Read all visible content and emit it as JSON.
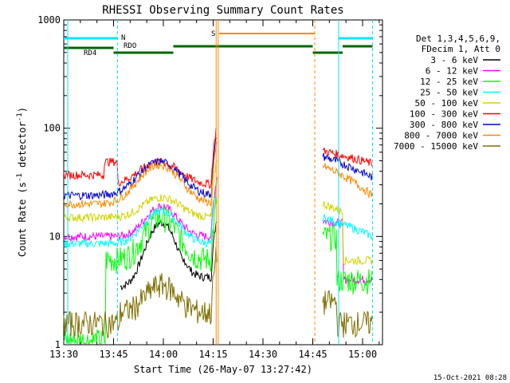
{
  "chart_data": {
    "type": "line",
    "title": "RHESSI Observing Summary Count Rates",
    "xlabel": "Start Time (26-May-07 13:27:42)",
    "ylabel_main": "Count Rate (s",
    "ylabel_sup1": "-1",
    "ylabel_mid": " detector",
    "ylabel_sup2": "-1",
    "ylabel_end": ")",
    "y_scale": "log",
    "ylim": [
      1,
      1000
    ],
    "xlim_minutes": [
      13.5,
      15.1
    ],
    "x_ticks": [
      {
        "t": 13.5,
        "label": "13:30"
      },
      {
        "t": 13.75,
        "label": "13:45"
      },
      {
        "t": 14.0,
        "label": "14:00"
      },
      {
        "t": 14.25,
        "label": "14:15"
      },
      {
        "t": 14.5,
        "label": "14:30"
      },
      {
        "t": 14.75,
        "label": "14:45"
      },
      {
        "t": 15.0,
        "label": "15:00"
      }
    ],
    "y_ticks": [
      {
        "v": 1,
        "label": "1"
      },
      {
        "v": 10,
        "label": "10"
      },
      {
        "v": 100,
        "label": "100"
      },
      {
        "v": 1000,
        "label": "1000"
      }
    ],
    "legend_header": [
      "Det 1,3,4,5,6,9,",
      "FDecim 1, Att 0"
    ],
    "series": [
      {
        "name": "3 - 6 keV",
        "color": "#000000"
      },
      {
        "name": "6 - 12 keV",
        "color": "#ff00ff"
      },
      {
        "name": "12 - 25 keV",
        "color": "#00ff00"
      },
      {
        "name": "25 - 50 keV",
        "color": "#00ffff"
      },
      {
        "name": "50 - 100 keV",
        "color": "#d4d400"
      },
      {
        "name": "100 - 300 keV",
        "color": "#ff0000"
      },
      {
        "name": "300 - 800 keV",
        "color": "#0000cc"
      },
      {
        "name": "800 - 7000 keV",
        "color": "#ff8800"
      },
      {
        "name": "7000 - 15000 keV",
        "color": "#7f6f00"
      }
    ],
    "status_labels": {
      "night": "N",
      "saa": "S",
      "rd4": "RD4",
      "rdo": "RDO"
    },
    "footer_date": "15-Oct-2021 08:28"
  }
}
